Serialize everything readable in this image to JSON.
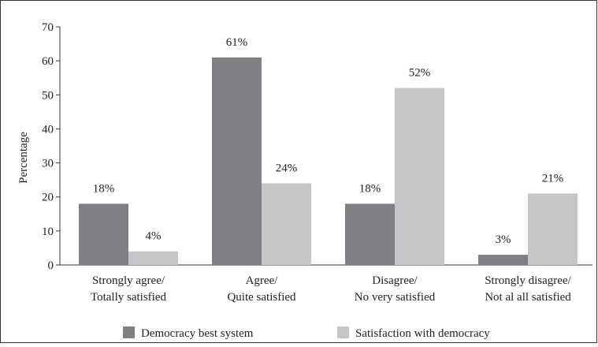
{
  "chart_data": {
    "type": "bar",
    "title": "",
    "xlabel": "",
    "ylabel": "Percentage",
    "ylim": [
      0,
      70
    ],
    "yticks": [
      0,
      10,
      20,
      30,
      40,
      50,
      60,
      70
    ],
    "grid": false,
    "legend": "bottom",
    "categories": [
      [
        "Strongly agree/",
        "Totally satisfied"
      ],
      [
        "Agree/",
        "Quite satisfied"
      ],
      [
        "Disagree/",
        "No very satisfied"
      ],
      [
        "Strongly disagree/",
        "Not al all satisfied"
      ]
    ],
    "series": [
      {
        "name": "Democracy best system",
        "color": "#808084",
        "values": [
          18,
          61,
          18,
          3
        ],
        "labels": [
          "18%",
          "61%",
          "18%",
          "3%"
        ]
      },
      {
        "name": "Satisfaction with democracy",
        "color": "#c6c6c8",
        "values": [
          4,
          24,
          52,
          21
        ],
        "labels": [
          "4%",
          "24%",
          "52%",
          "21%"
        ]
      }
    ]
  }
}
